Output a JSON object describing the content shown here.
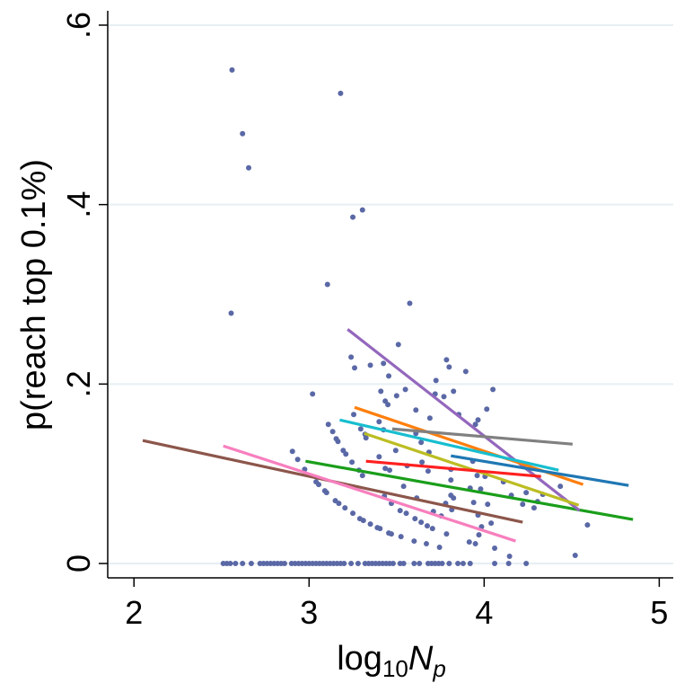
{
  "chart_data": {
    "type": "scatter",
    "title": "",
    "xlabel": "log10Np",
    "xlabel_parts": {
      "base": "log",
      "base_sub": "10",
      "var": "N",
      "var_sub": "p"
    },
    "ylabel": "p(reach top 0.1%)",
    "xlim": [
      1.85,
      5.08
    ],
    "ylim": [
      -0.016,
      0.616
    ],
    "grid": true,
    "legend": "none",
    "x_ticks": [
      2,
      3,
      4,
      5
    ],
    "x_tick_labels": [
      "2",
      "3",
      "4",
      "5"
    ],
    "y_ticks": [
      0,
      0.2,
      0.4,
      0.6
    ],
    "y_tick_labels": [
      "0",
      ".2",
      ".4",
      ".6"
    ],
    "colors": {
      "points": "#5a68a6",
      "grid": "#e6eff3",
      "axis": "#000000"
    },
    "points": [
      [
        2.56,
        0.55
      ],
      [
        2.62,
        0.479
      ],
      [
        2.655,
        0.441
      ],
      [
        2.555,
        0.279
      ],
      [
        3.18,
        0.524
      ],
      [
        3.25,
        0.386
      ],
      [
        3.305,
        0.394
      ],
      [
        3.105,
        0.311
      ],
      [
        3.575,
        0.29
      ],
      [
        3.02,
        0.189
      ],
      [
        3.24,
        0.23
      ],
      [
        3.26,
        0.218
      ],
      [
        3.35,
        0.221
      ],
      [
        3.425,
        0.223
      ],
      [
        3.455,
        0.209
      ],
      [
        3.51,
        0.244
      ],
      [
        3.41,
        0.192
      ],
      [
        3.435,
        0.181
      ],
      [
        3.45,
        0.177
      ],
      [
        3.5,
        0.187
      ],
      [
        3.55,
        0.194
      ],
      [
        3.255,
        0.166
      ],
      [
        3.4,
        0.158
      ],
      [
        3.425,
        0.149
      ],
      [
        3.11,
        0.155
      ],
      [
        3.135,
        0.147
      ],
      [
        3.155,
        0.139
      ],
      [
        3.165,
        0.136
      ],
      [
        3.195,
        0.126
      ],
      [
        3.21,
        0.122
      ],
      [
        3.245,
        0.113
      ],
      [
        2.905,
        0.125
      ],
      [
        2.935,
        0.116
      ],
      [
        2.975,
        0.105
      ],
      [
        3.04,
        0.091
      ],
      [
        3.055,
        0.088
      ],
      [
        3.09,
        0.081
      ],
      [
        3.1,
        0.079
      ],
      [
        3.15,
        0.07
      ],
      [
        3.17,
        0.067
      ],
      [
        3.205,
        0.062
      ],
      [
        3.25,
        0.056
      ],
      [
        3.29,
        0.05
      ],
      [
        3.31,
        0.048
      ],
      [
        3.35,
        0.044
      ],
      [
        3.39,
        0.04
      ],
      [
        3.405,
        0.039
      ],
      [
        3.455,
        0.034
      ],
      [
        3.47,
        0.033
      ],
      [
        3.525,
        0.03
      ],
      [
        3.295,
        0.15
      ],
      [
        3.32,
        0.144
      ],
      [
        3.325,
        0.14
      ],
      [
        3.4,
        0.119
      ],
      [
        3.435,
        0.106
      ],
      [
        3.46,
        0.104
      ],
      [
        3.285,
        0.104
      ],
      [
        3.305,
        0.098
      ],
      [
        3.495,
        0.126
      ],
      [
        3.54,
        0.086
      ],
      [
        3.43,
        0.075
      ],
      [
        3.47,
        0.067
      ],
      [
        3.52,
        0.059
      ],
      [
        3.555,
        0.056
      ],
      [
        3.785,
        0.227
      ],
      [
        3.8,
        0.219
      ],
      [
        3.895,
        0.214
      ],
      [
        3.725,
        0.204
      ],
      [
        3.72,
        0.189
      ],
      [
        3.77,
        0.186
      ],
      [
        3.825,
        0.192
      ],
      [
        4.05,
        0.194
      ],
      [
        3.61,
        0.171
      ],
      [
        3.69,
        0.162
      ],
      [
        3.61,
        0.145
      ],
      [
        3.64,
        0.135
      ],
      [
        3.685,
        0.124
      ],
      [
        3.855,
        0.166
      ],
      [
        4.015,
        0.172
      ],
      [
        3.965,
        0.16
      ],
      [
        3.95,
        0.155
      ],
      [
        3.935,
        0.114
      ],
      [
        3.645,
        0.113
      ],
      [
        3.68,
        0.103
      ],
      [
        3.56,
        0.109
      ],
      [
        3.81,
        0.105
      ],
      [
        3.96,
        0.098
      ],
      [
        4.005,
        0.097
      ],
      [
        3.81,
        0.093
      ],
      [
        3.92,
        0.084
      ],
      [
        3.98,
        0.083
      ],
      [
        4.11,
        0.091
      ],
      [
        4.435,
        0.086
      ],
      [
        4.24,
        0.079
      ],
      [
        4.155,
        0.076
      ],
      [
        4.335,
        0.077
      ],
      [
        3.615,
        0.073
      ],
      [
        3.81,
        0.076
      ],
      [
        3.825,
        0.073
      ],
      [
        3.78,
        0.067
      ],
      [
        3.94,
        0.068
      ],
      [
        4.02,
        0.066
      ],
      [
        4.22,
        0.066
      ],
      [
        4.305,
        0.069
      ],
      [
        4.285,
        0.062
      ],
      [
        3.71,
        0.058
      ],
      [
        3.755,
        0.053
      ],
      [
        3.815,
        0.06
      ],
      [
        3.965,
        0.054
      ],
      [
        3.605,
        0.05
      ],
      [
        3.64,
        0.046
      ],
      [
        3.675,
        0.042
      ],
      [
        3.705,
        0.039
      ],
      [
        4.04,
        0.045
      ],
      [
        3.985,
        0.041
      ],
      [
        3.97,
        0.032
      ],
      [
        3.785,
        0.033
      ],
      [
        3.6,
        0.025
      ],
      [
        3.67,
        0.022
      ],
      [
        3.745,
        0.018
      ],
      [
        3.915,
        0.024
      ],
      [
        3.95,
        0.022
      ],
      [
        4.06,
        0.017
      ],
      [
        4.145,
        0.008
      ],
      [
        4.59,
        0.043
      ],
      [
        4.52,
        0.009
      ]
    ],
    "zero_points_x": [
      2.51,
      2.53,
      2.55,
      2.58,
      2.62,
      2.67,
      2.72,
      2.74,
      2.76,
      2.78,
      2.8,
      2.82,
      2.84,
      2.86,
      2.9,
      2.92,
      2.94,
      2.96,
      2.98,
      3.0,
      3.02,
      3.04,
      3.06,
      3.08,
      3.1,
      3.12,
      3.14,
      3.16,
      3.18,
      3.2,
      3.24,
      3.28,
      3.32,
      3.34,
      3.36,
      3.38,
      3.4,
      3.42,
      3.44,
      3.46,
      3.48,
      3.52,
      3.54,
      3.6,
      3.63,
      3.68,
      3.7,
      3.72,
      3.74,
      3.76,
      3.8,
      3.85,
      3.88,
      3.92,
      4.06,
      4.14,
      4.24
    ],
    "series": [
      {
        "name": "brown",
        "color": "#8c564b",
        "x": [
          2.05,
          4.22
        ],
        "y": [
          0.137,
          0.046
        ]
      },
      {
        "name": "pink",
        "color": "#f77fbe",
        "x": [
          2.51,
          4.18
        ],
        "y": [
          0.131,
          0.025
        ]
      },
      {
        "name": "green",
        "color": "#1a9e1a",
        "x": [
          2.98,
          4.85
        ],
        "y": [
          0.114,
          0.049
        ]
      },
      {
        "name": "purple",
        "color": "#9467bd",
        "x": [
          3.22,
          4.545
        ],
        "y": [
          0.261,
          0.059
        ]
      },
      {
        "name": "orange",
        "color": "#ff7f0e",
        "x": [
          3.26,
          4.565
        ],
        "y": [
          0.174,
          0.088
        ]
      },
      {
        "name": "cyan",
        "color": "#17becf",
        "x": [
          3.175,
          4.425
        ],
        "y": [
          0.16,
          0.104
        ]
      },
      {
        "name": "olive",
        "color": "#bcbd22",
        "x": [
          3.315,
          4.54
        ],
        "y": [
          0.145,
          0.065
        ]
      },
      {
        "name": "red",
        "color": "#ff2020",
        "x": [
          3.325,
          4.325
        ],
        "y": [
          0.114,
          0.097
        ]
      },
      {
        "name": "gray",
        "color": "#808080",
        "x": [
          3.475,
          4.505
        ],
        "y": [
          0.15,
          0.133
        ]
      },
      {
        "name": "blue",
        "color": "#1f77b4",
        "x": [
          3.81,
          4.825
        ],
        "y": [
          0.12,
          0.087
        ]
      }
    ]
  }
}
